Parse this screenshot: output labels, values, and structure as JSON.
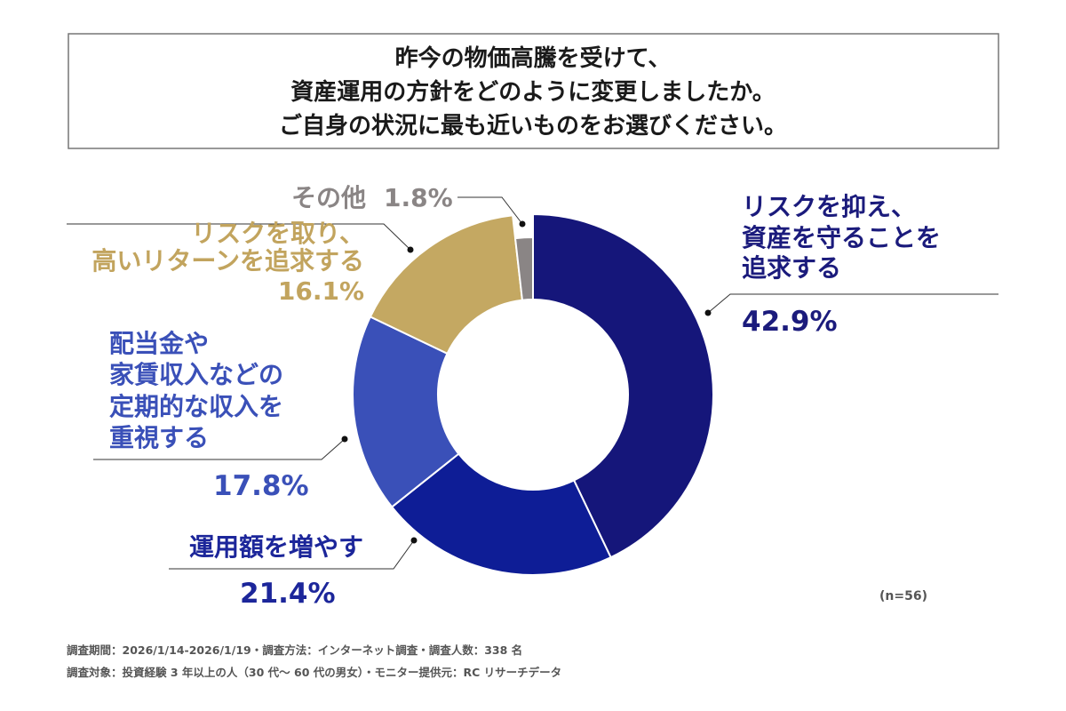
{
  "chart_data": {
    "type": "pie",
    "donut": true,
    "title": [
      "昨今の物価高騰を受けて、",
      "資産運用の方針をどのように変更しましたか。",
      "ご自身の状況に最も近いものをお選びください。"
    ],
    "slices": [
      {
        "label": [
          "リスクを抑え、",
          "資産を守ることを",
          "追求する"
        ],
        "value": 42.9,
        "value_label": "42.9%",
        "color": "#15167a",
        "text_color": "#1b1b7c"
      },
      {
        "label": [
          "運用額を増やす"
        ],
        "value": 21.4,
        "value_label": "21.4%",
        "color": "#0e1d96",
        "text_color": "#1c269a"
      },
      {
        "label": [
          "配当金や",
          "家賃収入などの",
          "定期的な収入を",
          "重視する"
        ],
        "value": 17.8,
        "value_label": "17.8%",
        "color": "#3a50b8",
        "text_color": "#3a50b8"
      },
      {
        "label": [
          "リスクを取り、",
          "高いリターンを追求する"
        ],
        "value": 16.1,
        "value_label": "16.1%",
        "color": "#c4a862",
        "text_color": "#c2a45e"
      },
      {
        "label": [
          "その他"
        ],
        "value": 1.8,
        "value_label": "1.8%",
        "color": "#8a8585",
        "text_color": "#8a8585"
      }
    ],
    "note": "(n=56)"
  },
  "footer": [
    "調査期間：2026/1/14-2026/1/19・調査方法：インターネット調査・調査人数：338 名",
    "調査対象：投資経験 3 年以上の人（30 代～ 60 代の男女）・モニター提供元：RC リサーチデータ"
  ]
}
